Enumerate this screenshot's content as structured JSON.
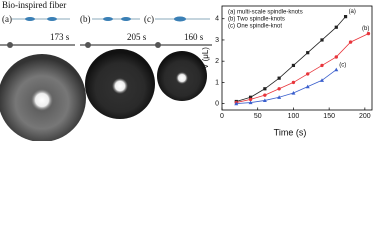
{
  "header": {
    "title": "Bio-inspired fiber"
  },
  "panels": [
    {
      "label": "(a)",
      "time": "173 s"
    },
    {
      "label": "(b)",
      "time": "205 s"
    },
    {
      "label": "(c)",
      "time": "160 s"
    }
  ],
  "chart_data": {
    "type": "line",
    "xlabel": "Time (s)",
    "ylabel": "V (μL)",
    "xlim": [
      0,
      210
    ],
    "xticks": [
      0,
      50,
      100,
      150,
      200
    ],
    "ylim": [
      -0.3,
      4.6
    ],
    "yticks": [
      0,
      1,
      2,
      3,
      4
    ],
    "grid": false,
    "series": [
      {
        "name": "(a) multi-scale spindle-knots",
        "color": "#222222",
        "marker": "square",
        "end_label": "(a)",
        "x": [
          20,
          40,
          60,
          80,
          100,
          120,
          140,
          160,
          173
        ],
        "values": [
          0.1,
          0.3,
          0.7,
          1.2,
          1.8,
          2.4,
          3.0,
          3.6,
          4.1
        ]
      },
      {
        "name": "(b) Two spindle-knots",
        "color": "#e8353b",
        "marker": "circle",
        "end_label": "(b)",
        "x": [
          20,
          40,
          60,
          80,
          100,
          120,
          140,
          160,
          180,
          205
        ],
        "values": [
          0.05,
          0.2,
          0.4,
          0.7,
          1.0,
          1.4,
          1.8,
          2.2,
          2.9,
          3.3
        ]
      },
      {
        "name": "(c) One spindle-knot",
        "color": "#3a5fcd",
        "marker": "triangle",
        "end_label": "(c)",
        "x": [
          20,
          40,
          60,
          80,
          100,
          120,
          140,
          160
        ],
        "values": [
          0.0,
          0.05,
          0.15,
          0.3,
          0.5,
          0.8,
          1.1,
          1.6
        ]
      }
    ]
  }
}
